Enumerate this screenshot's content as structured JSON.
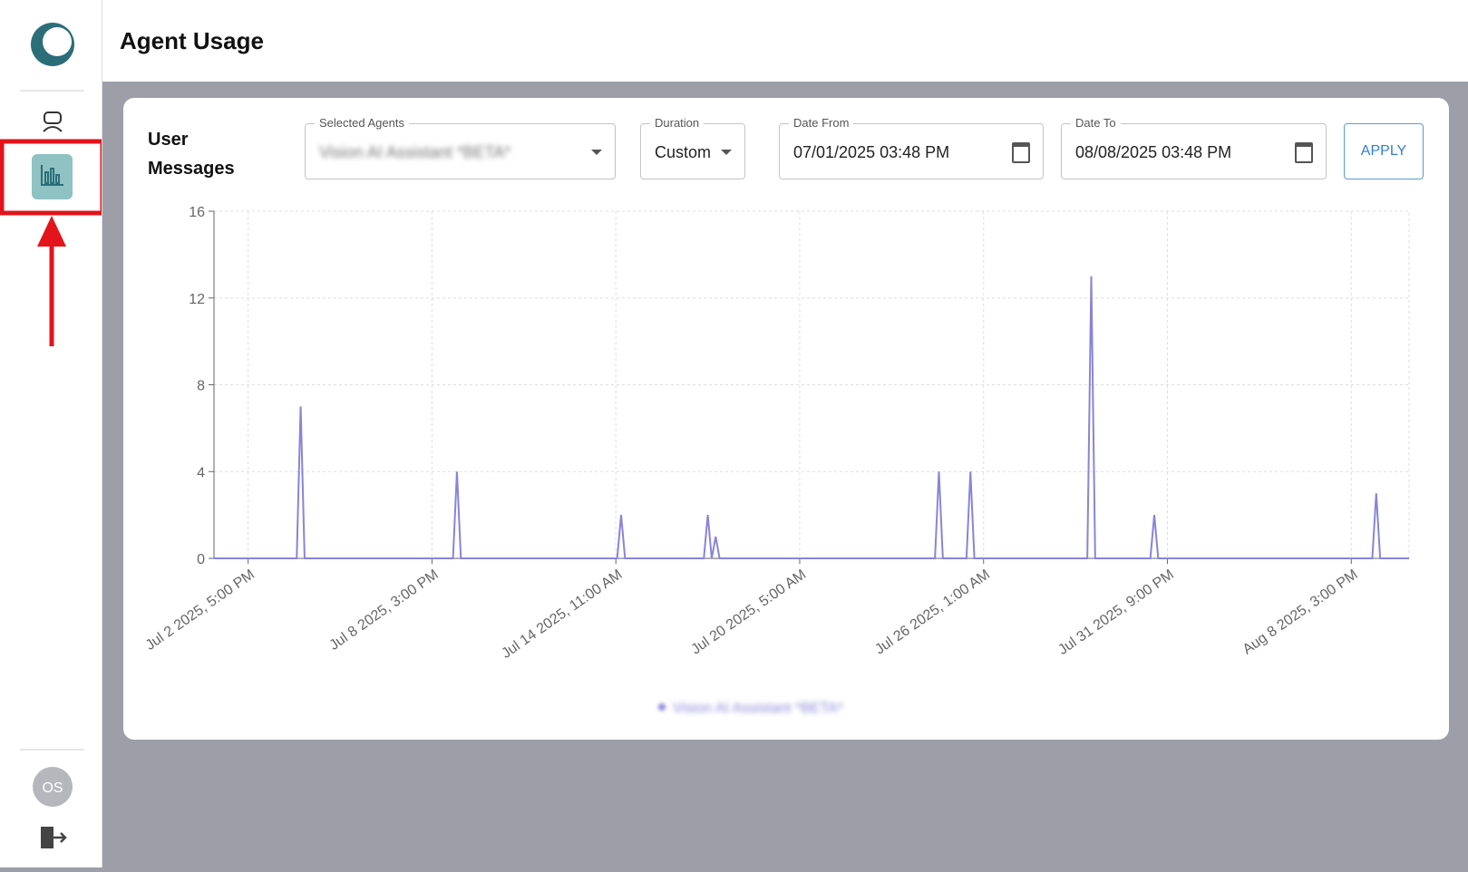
{
  "header": {
    "title": "Agent Usage"
  },
  "sidebar": {
    "avatar": "OS"
  },
  "card": {
    "heading": "User Messages"
  },
  "filters": {
    "agents": {
      "label": "Selected Agents",
      "value": "Vision AI Assistant *BETA*"
    },
    "duration": {
      "label": "Duration",
      "value": "Custom"
    },
    "date_from": {
      "label": "Date From",
      "value": "07/01/2025 03:48 PM"
    },
    "date_to": {
      "label": "Date To",
      "value": "08/08/2025 03:48 PM"
    },
    "apply": "APPLY"
  },
  "chart_data": {
    "type": "line",
    "x": [
      -26,
      37,
      40,
      43,
      156,
      159,
      162,
      281,
      284,
      287,
      347,
      350,
      353,
      356,
      359,
      523,
      526,
      529,
      547,
      550,
      553,
      639,
      642,
      645,
      687,
      690,
      693,
      856,
      859,
      862,
      884
    ],
    "series": [
      {
        "name": "Vision AI Assistant *BETA*",
        "color": "#8884d8",
        "values": [
          0,
          0,
          7,
          0,
          0,
          4,
          0,
          0,
          2,
          0,
          0,
          2,
          0,
          1,
          0,
          0,
          4,
          0,
          0,
          4,
          0,
          0,
          13,
          0,
          0,
          2,
          0,
          0,
          3,
          0,
          0
        ]
      }
    ],
    "xlim": [
      -26,
      884
    ],
    "xticks": [
      {
        "value": 0,
        "label": "Jul 2 2025, 5:00 PM"
      },
      {
        "value": 140,
        "label": "Jul 8 2025, 3:00 PM"
      },
      {
        "value": 280,
        "label": "Jul 14 2025, 11:00 AM"
      },
      {
        "value": 420,
        "label": "Jul 20 2025, 5:00 AM"
      },
      {
        "value": 560,
        "label": "Jul 26 2025, 1:00 AM"
      },
      {
        "value": 700,
        "label": "Jul 31 2025, 9:00 PM"
      },
      {
        "value": 840,
        "label": "Aug 8 2025, 3:00 PM"
      }
    ],
    "ylim": [
      0,
      16
    ],
    "yticks": [
      0,
      4,
      8,
      12,
      16
    ],
    "grid": true
  }
}
